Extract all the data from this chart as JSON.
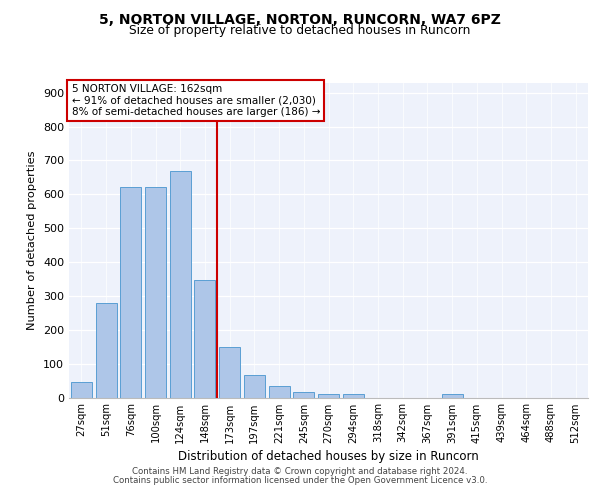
{
  "title1": "5, NORTON VILLAGE, NORTON, RUNCORN, WA7 6PZ",
  "title2": "Size of property relative to detached houses in Runcorn",
  "xlabel": "Distribution of detached houses by size in Runcorn",
  "ylabel": "Number of detached properties",
  "categories": [
    "27sqm",
    "51sqm",
    "76sqm",
    "100sqm",
    "124sqm",
    "148sqm",
    "173sqm",
    "197sqm",
    "221sqm",
    "245sqm",
    "270sqm",
    "294sqm",
    "318sqm",
    "342sqm",
    "367sqm",
    "391sqm",
    "415sqm",
    "439sqm",
    "464sqm",
    "488sqm",
    "512sqm"
  ],
  "values": [
    45,
    278,
    621,
    621,
    670,
    347,
    148,
    65,
    33,
    15,
    10,
    10,
    0,
    0,
    0,
    10,
    0,
    0,
    0,
    0,
    0
  ],
  "bar_color": "#aec6e8",
  "bar_edge_color": "#5a9fd4",
  "vline_x": 5.5,
  "vline_color": "#cc0000",
  "annotation_title": "5 NORTON VILLAGE: 162sqm",
  "annotation_line1": "← 91% of detached houses are smaller (2,030)",
  "annotation_line2": "8% of semi-detached houses are larger (186) →",
  "annotation_box_color": "#cc0000",
  "ylim": [
    0,
    930
  ],
  "yticks": [
    0,
    100,
    200,
    300,
    400,
    500,
    600,
    700,
    800,
    900
  ],
  "footer1": "Contains HM Land Registry data © Crown copyright and database right 2024.",
  "footer2": "Contains public sector information licensed under the Open Government Licence v3.0.",
  "axes_bg_color": "#eef2fb"
}
